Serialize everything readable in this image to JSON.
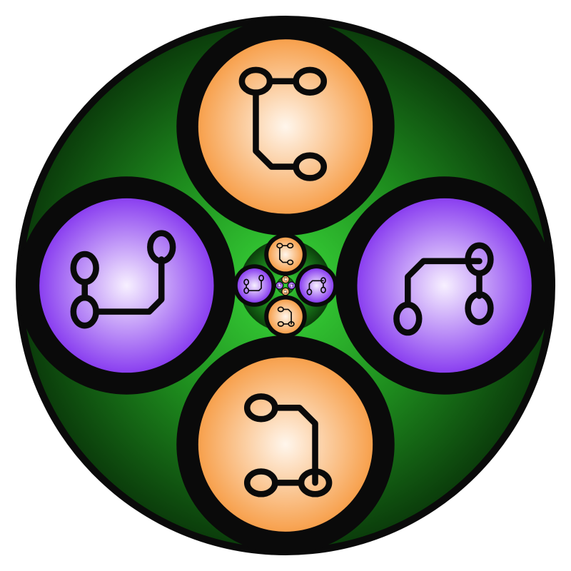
{
  "colors": {
    "background": "#ffffff",
    "outer_rim": "#0a0a0a",
    "green_edge": "#0b3d0b",
    "green_mid": "#1e8c1e",
    "green_center": "#39d839",
    "orange_center": "#fff6ec",
    "orange_edge": "#f7a04c",
    "purple_center": "#f7f0ff",
    "purple_edge": "#8a3ff0",
    "glyph_stroke": "#0a0a0a"
  },
  "disks": [
    {
      "name": "top-orange-disk",
      "fill": "orange",
      "glyph": "circuit-top-icon"
    },
    {
      "name": "right-purple-disk",
      "fill": "purple",
      "glyph": "circuit-right-icon"
    },
    {
      "name": "bottom-orange-disk",
      "fill": "orange",
      "glyph": "circuit-bottom-icon"
    },
    {
      "name": "left-purple-disk",
      "fill": "purple",
      "glyph": "circuit-left-icon"
    }
  ],
  "recursion_levels": 3
}
